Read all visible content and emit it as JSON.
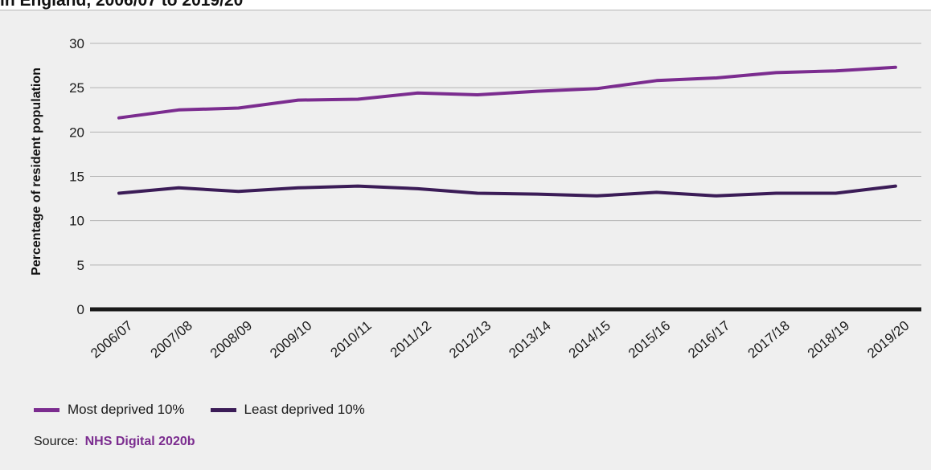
{
  "header": {
    "title_fragment": "in England, 2006/07 to 2019/20"
  },
  "chart_data": {
    "type": "line",
    "title": "",
    "xlabel": "",
    "ylabel": "Percentage of resident population",
    "ylim": [
      0,
      30
    ],
    "yticks": [
      0,
      5,
      10,
      15,
      20,
      25,
      30
    ],
    "grid": true,
    "legend": "bottom-left",
    "categories": [
      "2006/07",
      "2007/08",
      "2008/09",
      "2009/10",
      "2010/11",
      "2011/12",
      "2012/13",
      "2013/14",
      "2014/15",
      "2015/16",
      "2016/17",
      "2017/18",
      "2018/19",
      "2019/20"
    ],
    "series": [
      {
        "name": "Most deprived 10%",
        "color": "#7b2c8f",
        "values": [
          21.6,
          22.5,
          22.7,
          23.6,
          23.7,
          24.4,
          24.2,
          24.6,
          24.9,
          25.8,
          26.1,
          26.7,
          26.9,
          27.3
        ]
      },
      {
        "name": "Least deprived 10%",
        "color": "#3b1c57",
        "values": [
          13.1,
          13.7,
          13.3,
          13.7,
          13.9,
          13.6,
          13.1,
          13.0,
          12.8,
          13.2,
          12.8,
          13.1,
          13.1,
          13.9
        ]
      }
    ]
  },
  "source": {
    "label": "Source:",
    "link": "NHS Digital 2020b"
  }
}
